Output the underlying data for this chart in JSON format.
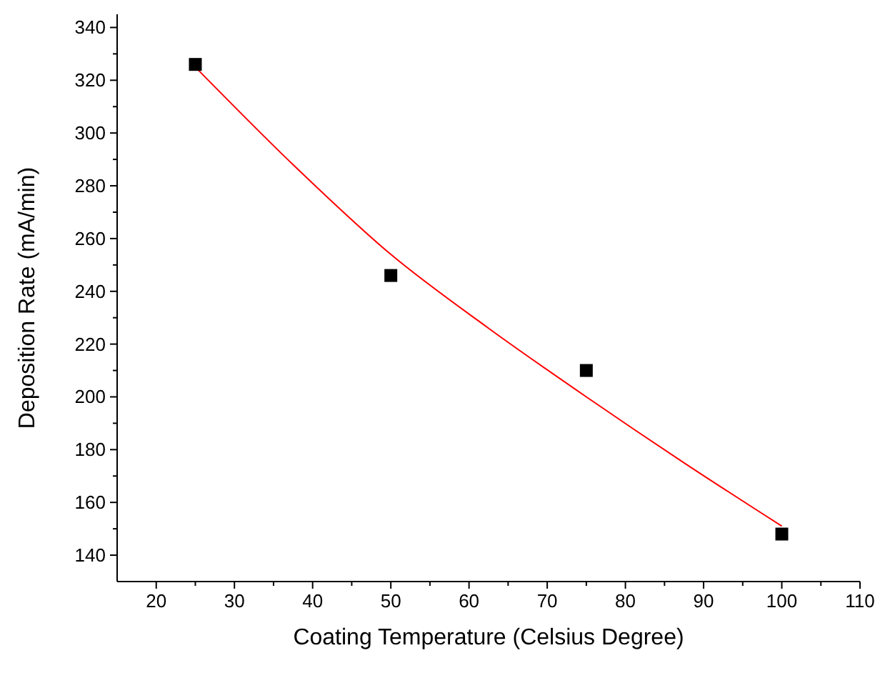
{
  "chart_data": {
    "type": "scatter",
    "xlabel": "Coating Temperature (Celsius Degree)",
    "ylabel": "Deposition Rate (mA/min)",
    "xlim": [
      15,
      110
    ],
    "ylim": [
      130,
      345
    ],
    "xticks": [
      20,
      {
        "value": 25,
        "label": null
      },
      30,
      {
        "value": 35,
        "label": null
      },
      40,
      {
        "value": 45,
        "label": null
      },
      50,
      {
        "value": 55,
        "label": null
      },
      60,
      {
        "value": 65,
        "label": null
      },
      70,
      {
        "value": 75,
        "label": null
      },
      80,
      {
        "value": 85,
        "label": null
      },
      90,
      {
        "value": 95,
        "label": null
      },
      100,
      {
        "value": 105,
        "label": null
      },
      110
    ],
    "yticks": [
      140,
      {
        "value": 150,
        "label": null
      },
      160,
      {
        "value": 170,
        "label": null
      },
      180,
      {
        "value": 190,
        "label": null
      },
      200,
      {
        "value": 210,
        "label": null
      },
      220,
      {
        "value": 230,
        "label": null
      },
      240,
      {
        "value": 250,
        "label": null
      },
      260,
      {
        "value": 270,
        "label": null
      },
      280,
      {
        "value": 290,
        "label": null
      },
      300,
      {
        "value": 310,
        "label": null
      },
      320,
      {
        "value": 330,
        "label": null
      },
      340
    ],
    "grid": false,
    "series": [
      {
        "type": "line",
        "color": "#ff0000",
        "marker": "none",
        "line_style": "solid",
        "x": [
          25,
          37.5,
          50,
          62.5,
          75,
          87.5,
          100
        ],
        "values": [
          325,
          288,
          254,
          226,
          200,
          175,
          151
        ]
      },
      {
        "color": "#000000",
        "marker": "square",
        "x": [
          25,
          50,
          75,
          100
        ],
        "values": [
          326,
          246,
          210,
          148
        ]
      }
    ]
  }
}
